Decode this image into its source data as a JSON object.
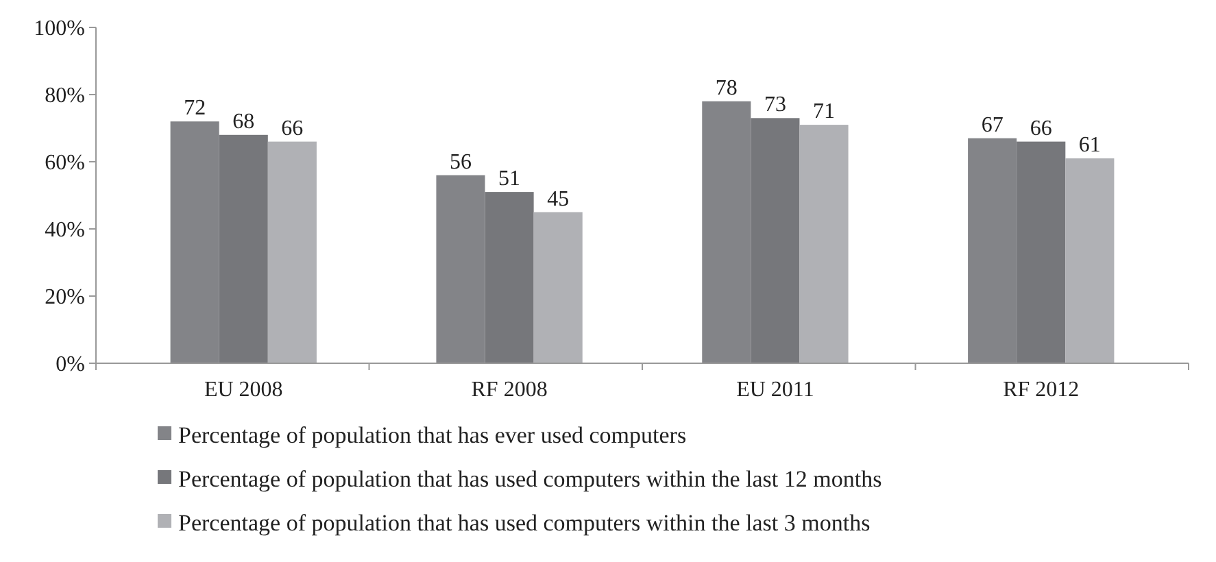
{
  "chart_data": {
    "type": "bar",
    "categories": [
      "EU 2008",
      "RF 2008",
      "EU 2011",
      "RF 2012"
    ],
    "series": [
      {
        "name": "Percentage of population that has ever used computers",
        "color": "#838488",
        "values": [
          72,
          56,
          78,
          67
        ]
      },
      {
        "name": "Percentage of population that has used computers within the last 12 months",
        "color": "#76777b",
        "values": [
          68,
          51,
          73,
          66
        ]
      },
      {
        "name": "Percentage of population that has used computers within the last 3 months",
        "color": "#b0b1b5",
        "values": [
          66,
          45,
          71,
          61
        ]
      }
    ],
    "ylim": [
      0,
      100
    ],
    "yticks": [
      {
        "value": 0,
        "label": "0%"
      },
      {
        "value": 20,
        "label": "20%"
      },
      {
        "value": 40,
        "label": "40%"
      },
      {
        "value": 60,
        "label": "60%"
      },
      {
        "value": 80,
        "label": "80%"
      },
      {
        "value": 100,
        "label": "100%"
      }
    ],
    "data_labels": true,
    "legend": "bottom",
    "grid": false
  }
}
